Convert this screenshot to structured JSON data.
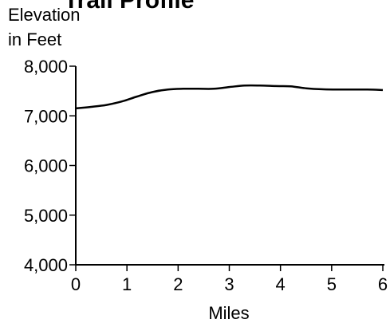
{
  "chart_data": {
    "type": "line",
    "title": "Trail Profile",
    "ylabel_line1": "Elevation",
    "ylabel_line2": "in Feet",
    "xlabel": "Miles",
    "xlim": [
      0,
      6
    ],
    "ylim": [
      4000,
      8000
    ],
    "x_ticks": [
      0,
      1,
      2,
      3,
      4,
      5,
      6
    ],
    "x_tick_labels": [
      "0",
      "1",
      "2",
      "3",
      "4",
      "5",
      "6"
    ],
    "y_ticks": [
      4000,
      5000,
      6000,
      7000,
      8000
    ],
    "y_tick_labels": [
      "4,000",
      "5,000",
      "6,000",
      "7,000",
      "8,000"
    ],
    "grid": false,
    "series": [
      {
        "x": [
          0,
          0.3,
          0.6,
          0.9,
          1.2,
          1.5,
          1.8,
          2.1,
          2.4,
          2.7,
          3.0,
          3.3,
          3.6,
          3.9,
          4.2,
          4.5,
          4.8,
          5.1,
          5.4,
          5.7,
          6.0
        ],
        "y": [
          7150,
          7180,
          7220,
          7290,
          7390,
          7480,
          7530,
          7545,
          7545,
          7545,
          7580,
          7610,
          7610,
          7600,
          7595,
          7555,
          7535,
          7530,
          7530,
          7530,
          7520
        ]
      }
    ],
    "line_color": "#000000"
  }
}
